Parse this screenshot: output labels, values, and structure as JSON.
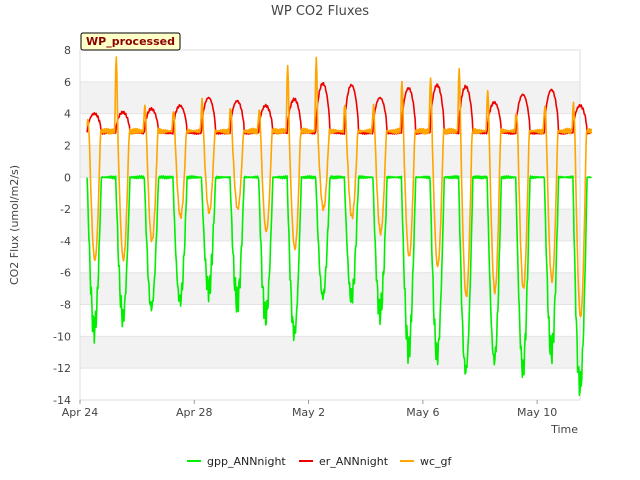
{
  "chart_data": {
    "type": "line",
    "title": "WP CO2 Fluxes",
    "tag": "WP_processed",
    "xlabel": "Time",
    "ylabel": "CO2 Flux (umol/m2/s)",
    "ylim": [
      -14,
      8
    ],
    "xlim": [
      0,
      17.5
    ],
    "yticks": [
      -14,
      -12,
      -10,
      -8,
      -6,
      -4,
      -2,
      0,
      2,
      4,
      6,
      8
    ],
    "xticks": [
      {
        "label": "Apr 24",
        "day": 0
      },
      {
        "label": "Apr 28",
        "day": 4
      },
      {
        "label": "May 2",
        "day": 8
      },
      {
        "label": "May 6",
        "day": 12
      },
      {
        "label": "May 10",
        "day": 16
      }
    ],
    "days": [
      0,
      1,
      2,
      3,
      4,
      5,
      6,
      7,
      8,
      9,
      10,
      11,
      12,
      13,
      14,
      15,
      16,
      17
    ],
    "legend_position": "bottom-center",
    "series": [
      {
        "name": "gpp_ANNnight",
        "color": "#00ee00",
        "night": 0,
        "daily_min": [
          -9.5,
          -8.8,
          -8.2,
          -7.8,
          -7.0,
          -7.8,
          -8.8,
          -9.8,
          -7.5,
          -7.6,
          -8.5,
          -10.8,
          -11.2,
          -12.2,
          -11.5,
          -12.0,
          -11.0,
          -13.2
        ]
      },
      {
        "name": "er_ANNnight",
        "color": "#ee0000",
        "night": 2.8,
        "daily_max": [
          4.0,
          4.1,
          4.3,
          4.5,
          5.0,
          4.8,
          4.5,
          4.9,
          5.9,
          5.8,
          5.0,
          5.6,
          5.8,
          5.7,
          4.7,
          5.2,
          5.5,
          4.5
        ]
      },
      {
        "name": "wc_gf",
        "color": "#ffa500",
        "night": 2.9,
        "daily_min": [
          -5.2,
          -5.2,
          -4.0,
          -2.5,
          -2.2,
          -2.0,
          -3.4,
          -4.5,
          -2.0,
          -2.5,
          -3.5,
          -5.0,
          -5.6,
          -7.5,
          -7.2,
          -7.0,
          -6.5,
          -8.8
        ],
        "daily_max": [
          3.5,
          7.6,
          4.5,
          4.2,
          4.8,
          4.4,
          4.2,
          7.0,
          7.5,
          4.6,
          4.5,
          6.0,
          6.3,
          6.8,
          5.4,
          4.0,
          4.5,
          4.6
        ]
      }
    ]
  }
}
